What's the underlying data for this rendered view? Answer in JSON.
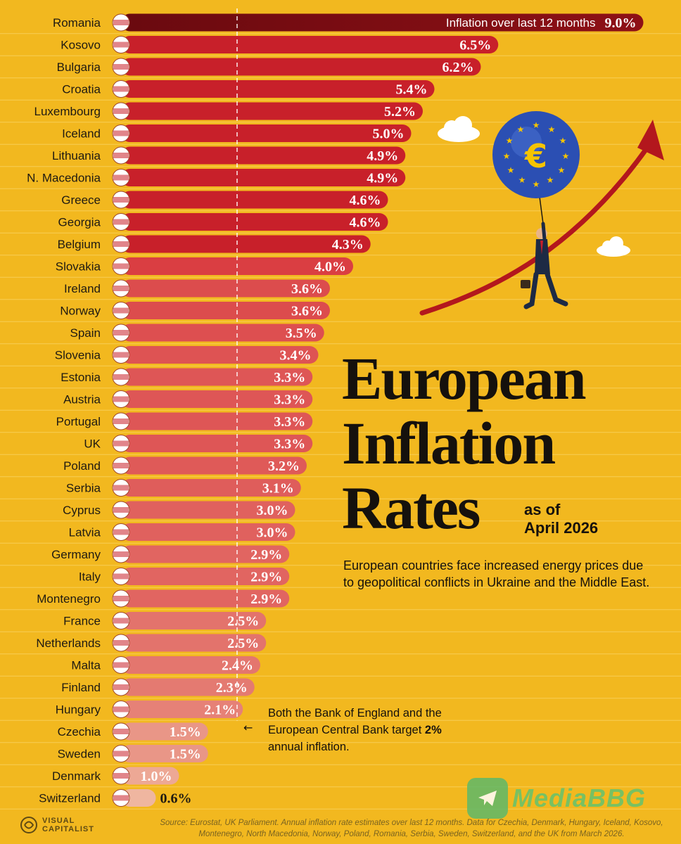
{
  "chart_data": {
    "type": "bar",
    "orientation": "horizontal",
    "title": "European Inflation Rates",
    "subtitle": "as of\nApril 2026",
    "legend_label": "Inflation over last 12 months",
    "value_suffix": "%",
    "reference_line": 2,
    "bars": [
      {
        "country": "Romania",
        "value": 9.0,
        "label": "9.0%"
      },
      {
        "country": "Kosovo",
        "value": 6.5,
        "label": "6.5%"
      },
      {
        "country": "Bulgaria",
        "value": 6.2,
        "label": "6.2%"
      },
      {
        "country": "Croatia",
        "value": 5.4,
        "label": "5.4%"
      },
      {
        "country": "Luxembourg",
        "value": 5.2,
        "label": "5.2%"
      },
      {
        "country": "Iceland",
        "value": 5.0,
        "label": "5.0%"
      },
      {
        "country": "Lithuania",
        "value": 4.9,
        "label": "4.9%"
      },
      {
        "country": "N. Macedonia",
        "value": 4.9,
        "label": "4.9%"
      },
      {
        "country": "Greece",
        "value": 4.6,
        "label": "4.6%"
      },
      {
        "country": "Georgia",
        "value": 4.6,
        "label": "4.6%"
      },
      {
        "country": "Belgium",
        "value": 4.3,
        "label": "4.3%"
      },
      {
        "country": "Slovakia",
        "value": 4.0,
        "label": "4.0%"
      },
      {
        "country": "Ireland",
        "value": 3.6,
        "label": "3.6%"
      },
      {
        "country": "Norway",
        "value": 3.6,
        "label": "3.6%"
      },
      {
        "country": "Spain",
        "value": 3.5,
        "label": "3.5%"
      },
      {
        "country": "Slovenia",
        "value": 3.4,
        "label": "3.4%"
      },
      {
        "country": "Estonia",
        "value": 3.3,
        "label": "3.3%"
      },
      {
        "country": "Austria",
        "value": 3.3,
        "label": "3.3%"
      },
      {
        "country": "Portugal",
        "value": 3.3,
        "label": "3.3%"
      },
      {
        "country": "UK",
        "value": 3.3,
        "label": "3.3%"
      },
      {
        "country": "Poland",
        "value": 3.2,
        "label": "3.2%"
      },
      {
        "country": "Serbia",
        "value": 3.1,
        "label": "3.1%"
      },
      {
        "country": "Cyprus",
        "value": 3.0,
        "label": "3.0%"
      },
      {
        "country": "Latvia",
        "value": 3.0,
        "label": "3.0%"
      },
      {
        "country": "Germany",
        "value": 2.9,
        "label": "2.9%"
      },
      {
        "country": "Italy",
        "value": 2.9,
        "label": "2.9%"
      },
      {
        "country": "Montenegro",
        "value": 2.9,
        "label": "2.9%"
      },
      {
        "country": "France",
        "value": 2.5,
        "label": "2.5%"
      },
      {
        "country": "Netherlands",
        "value": 2.5,
        "label": "2.5%"
      },
      {
        "country": "Malta",
        "value": 2.4,
        "label": "2.4%"
      },
      {
        "country": "Finland",
        "value": 2.3,
        "label": "2.3%"
      },
      {
        "country": "Hungary",
        "value": 2.1,
        "label": "2.1%"
      },
      {
        "country": "Czechia",
        "value": 1.5,
        "label": "1.5%"
      },
      {
        "country": "Sweden",
        "value": 1.5,
        "label": "1.5%"
      },
      {
        "country": "Denmark",
        "value": 1.0,
        "label": "1.0%"
      },
      {
        "country": "Switzerland",
        "value": 0.6,
        "label": "0.6%"
      }
    ]
  },
  "text": {
    "title_line1": "European",
    "title_line2": "Inflation",
    "title_line3": "Rates",
    "subtitle": "as of\nApril 2026",
    "description": "European countries face increased energy prices due to geopolitical conflicts in Ukraine and the Middle East.",
    "target_note_part1": "Both the Bank of England and the European Central Bank target ",
    "target_note_bold": "2%",
    "target_note_part2": " annual inflation.",
    "arrow_glyph": "←",
    "source": "Source: Eurostat, UK Parliament. Annual inflation rate estimates over last 12 months. Data for Czechia, Denmark, Hungary, Iceland, Kosovo, Montenegro, North Macedonia, Norway, Poland, Romania, Serbia, Sweden, Switzerland, and the UK from March 2026.",
    "logo_text": "VISUAL\nCAPITALIST",
    "watermark_text": "MediaBBG",
    "euro_symbol": "€"
  },
  "colors": {
    "background": "#f2b81f",
    "bar_top": "#7a0d12",
    "bar_high": "#c8202a",
    "bar_mid": "#d8333a",
    "bar_low": "#e4856f",
    "bar_min": "#efb6a0",
    "text_dark": "#15110d",
    "balloon": "#2b4fb3",
    "arrow": "#b3171d"
  },
  "icons": {
    "flag": "country-flag-icon",
    "euro_balloon": "euro-balloon-icon",
    "rising_arrow": "rising-arrow-icon",
    "cloud": "cloud-icon",
    "businessman": "businessman-icon",
    "telegram": "telegram-icon",
    "brain_logo": "visual-capitalist-logo-icon"
  }
}
